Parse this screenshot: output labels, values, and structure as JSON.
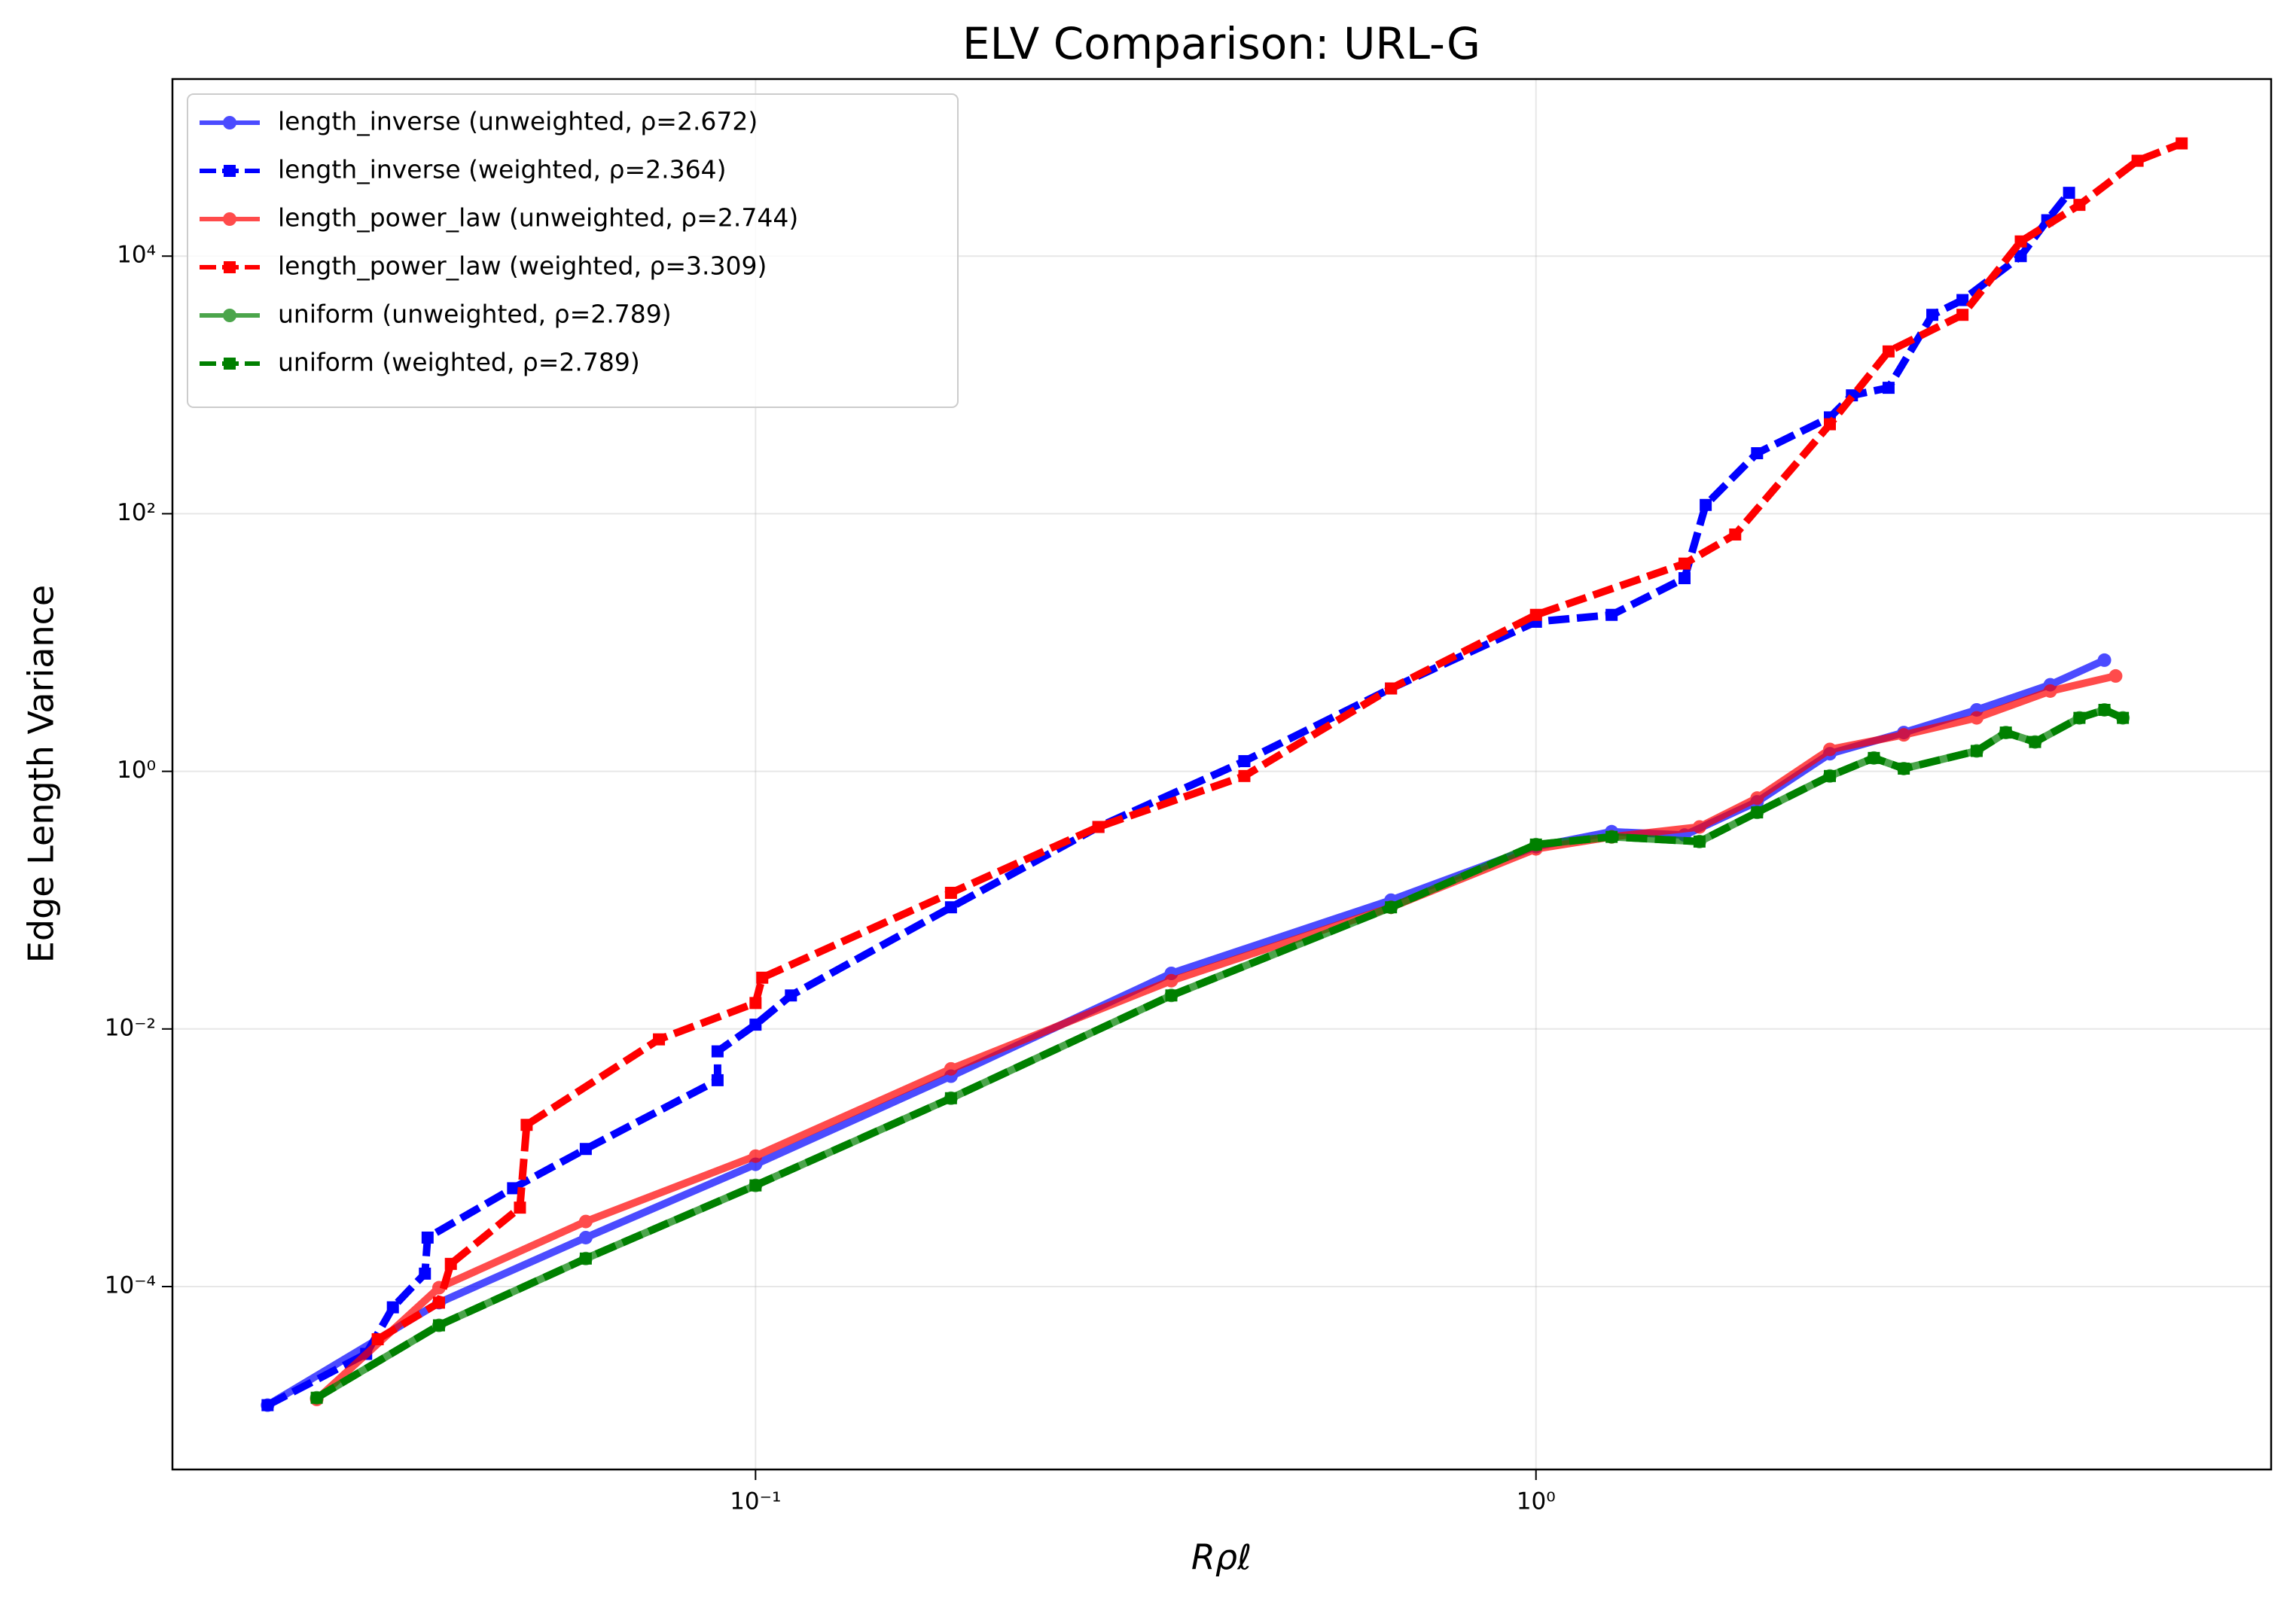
{
  "chart_data": {
    "type": "line",
    "title": "ELV Comparison: URL-G",
    "xlabel": "Rρℓ",
    "ylabel": "Edge Length Variance",
    "xscale": "log",
    "yscale": "log",
    "grid": true,
    "legend": "upper left",
    "xlim": [
      0.0179,
      8.75
    ],
    "ylim": [
      3.8e-06,
      237000
    ],
    "xticks": [
      {
        "value": 0.1,
        "label": "10⁻¹"
      },
      {
        "value": 1,
        "label": "10⁰"
      }
    ],
    "yticks": [
      {
        "value": 0.0001,
        "label": "10⁻⁴"
      },
      {
        "value": 0.01,
        "label": "10⁻²"
      },
      {
        "value": 1,
        "label": "10⁰"
      },
      {
        "value": 100,
        "label": "10²"
      },
      {
        "value": 10000,
        "label": "10⁴"
      }
    ],
    "series": [
      {
        "name": "length_inverse (unweighted, ρ=2.672)",
        "color": "#0000ff",
        "style": "solid",
        "marker": "circle",
        "x": [
          0.0237,
          0.0393,
          0.0606,
          0.1,
          0.178,
          0.341,
          0.652,
          1,
          1.25,
          1.55,
          1.92,
          2.38,
          2.96,
          3.67,
          4.56,
          5.35
        ],
        "values": [
          1.2e-05,
          7.5e-05,
          0.00024,
          0.00089,
          0.0043,
          0.027,
          0.1,
          0.26,
          0.34,
          0.32,
          0.58,
          1.37,
          2.0,
          3.0,
          4.7,
          7.3
        ]
      },
      {
        "name": "length_inverse (weighted, ρ=2.364)",
        "color": "#0000ff",
        "style": "dashed",
        "marker": "square",
        "x": [
          0.0237,
          0.0317,
          0.0343,
          0.0377,
          0.038,
          0.0489,
          0.0606,
          0.0894,
          0.0894,
          0.1,
          0.111,
          0.178,
          0.275,
          0.423,
          0.652,
          1,
          1.25,
          1.55,
          1.65,
          1.92,
          2.38,
          2.54,
          2.83,
          3.22,
          3.52,
          4.18,
          4.52,
          4.82
        ],
        "values": [
          1.2e-05,
          3e-05,
          6.9e-05,
          0.000126,
          0.00024,
          0.00058,
          0.00117,
          0.004,
          0.0067,
          0.0108,
          0.0182,
          0.088,
          0.37,
          1.2,
          4.4,
          14.5,
          16.4,
          31.6,
          117,
          295,
          560,
          830,
          950,
          3500,
          4560,
          10000,
          19000,
          31000
        ]
      },
      {
        "name": "length_power_law (unweighted, ρ=2.744)",
        "color": "#ff0000",
        "style": "solid",
        "marker": "circle",
        "x": [
          0.0274,
          0.0393,
          0.0606,
          0.1,
          0.178,
          0.341,
          0.652,
          1,
          1.25,
          1.62,
          1.92,
          2.38,
          2.96,
          3.67,
          4.56,
          5.53
        ],
        "values": [
          1.33e-05,
          9.8e-05,
          0.00032,
          0.00103,
          0.0049,
          0.0237,
          0.088,
          0.25,
          0.31,
          0.37,
          0.62,
          1.48,
          1.92,
          2.6,
          4.2,
          5.5
        ]
      },
      {
        "name": "length_power_law (weighted, ρ=3.309)",
        "color": "#ff0000",
        "style": "dashed",
        "marker": "square",
        "x": [
          0.0328,
          0.0393,
          0.0407,
          0.0499,
          0.0509,
          0.0752,
          0.1,
          0.102,
          0.178,
          0.275,
          0.423,
          0.652,
          1,
          1.55,
          1.8,
          2.38,
          2.83,
          3.52,
          4.18,
          4.97,
          5.9,
          6.72
        ],
        "values": [
          3.9e-05,
          7.5e-05,
          0.00015,
          0.00041,
          0.0018,
          0.0083,
          0.0159,
          0.025,
          0.114,
          0.37,
          0.92,
          4.4,
          16.4,
          41,
          69,
          495,
          1820,
          3500,
          13000,
          25000,
          55000,
          75000
        ]
      },
      {
        "name": "uniform (unweighted, ρ=2.789)",
        "color": "#008000",
        "style": "solid",
        "marker": "circle",
        "x": [
          0.0274,
          0.0393,
          0.0606,
          0.1,
          0.178,
          0.341,
          0.652,
          1,
          1.25,
          1.62,
          1.92,
          2.38,
          2.71,
          2.96,
          3.67,
          4.0,
          4.36,
          4.97,
          5.35,
          5.65
        ],
        "values": [
          1.37e-05,
          5e-05,
          0.000165,
          0.00061,
          0.0029,
          0.0182,
          0.088,
          0.27,
          0.31,
          0.285,
          0.48,
          0.92,
          1.27,
          1.05,
          1.44,
          2.0,
          1.69,
          2.6,
          3.0,
          2.6
        ]
      },
      {
        "name": "uniform (weighted, ρ=2.789)",
        "color": "#008000",
        "style": "dashed",
        "marker": "square",
        "x": [
          0.0274,
          0.0393,
          0.0606,
          0.1,
          0.178,
          0.341,
          0.652,
          1,
          1.25,
          1.62,
          1.92,
          2.38,
          2.71,
          2.96,
          3.67,
          4.0,
          4.36,
          4.97,
          5.35,
          5.65
        ],
        "values": [
          1.37e-05,
          5e-05,
          0.000165,
          0.00061,
          0.0029,
          0.0182,
          0.088,
          0.27,
          0.31,
          0.285,
          0.48,
          0.92,
          1.27,
          1.05,
          1.44,
          2.0,
          1.69,
          2.6,
          3.0,
          2.6
        ]
      }
    ]
  }
}
